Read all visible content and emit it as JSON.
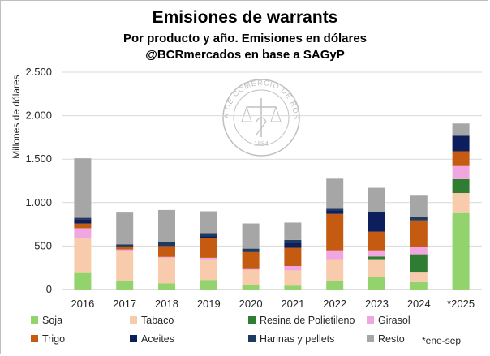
{
  "chart_data": {
    "type": "bar",
    "stacked": true,
    "title": "Emisiones de warrants",
    "subtitle_lines": [
      "Por producto y año. Emisiones en dólares",
      "@BCRmercados en base a SAGyP"
    ],
    "ylabel": "Millones de dólares",
    "xlabel": "",
    "ylim": [
      0,
      2500
    ],
    "yticks": [
      0,
      500,
      1000,
      1500,
      2000,
      2500
    ],
    "ytick_labels": [
      "0",
      "500",
      "1.000",
      "1.500",
      "2.000",
      "2.500"
    ],
    "categories": [
      "2016",
      "2017",
      "2018",
      "2019",
      "2020",
      "2021",
      "2022",
      "2023",
      "2024",
      "*2025"
    ],
    "series": [
      {
        "name": "Soja",
        "color": "#92d36e",
        "values": [
          190,
          100,
          70,
          110,
          55,
          45,
          95,
          140,
          85,
          880
        ]
      },
      {
        "name": "Tabaco",
        "color": "#f8cbad",
        "values": [
          400,
          340,
          295,
          230,
          170,
          175,
          245,
          200,
          110,
          230
        ]
      },
      {
        "name": "Resina de Polietileno",
        "color": "#2e7d32",
        "values": [
          0,
          0,
          0,
          0,
          0,
          0,
          0,
          40,
          210,
          160
        ]
      },
      {
        "name": "Girasol",
        "color": "#f0a6e0",
        "values": [
          115,
          20,
          10,
          25,
          10,
          50,
          110,
          70,
          80,
          150
        ]
      },
      {
        "name": "Trigo",
        "color": "#c55a11",
        "values": [
          55,
          35,
          125,
          230,
          195,
          210,
          420,
          215,
          310,
          170
        ]
      },
      {
        "name": "Aceites",
        "color": "#0c1f5c",
        "values": [
          50,
          0,
          0,
          20,
          0,
          60,
          40,
          230,
          0,
          180
        ]
      },
      {
        "name": "Harinas y pellets",
        "color": "#1f3a5f",
        "values": [
          15,
          25,
          45,
          35,
          40,
          30,
          20,
          0,
          40,
          0
        ]
      },
      {
        "name": "Resto",
        "color": "#a6a6a6",
        "values": [
          685,
          365,
          370,
          250,
          290,
          200,
          345,
          275,
          245,
          140
        ]
      }
    ],
    "legend": [
      "Soja",
      "Tabaco",
      "Resina de Polietileno",
      "Girasol",
      "Trigo",
      "Aceites",
      "Harinas y pellets",
      "Resto"
    ],
    "legend_position": "bottom",
    "grid": true,
    "footnote": "*ene-sep"
  },
  "watermark": {
    "outer_text": "BOLSA DE COMERCIO DE ROSARIO",
    "inner_text": "1884"
  }
}
